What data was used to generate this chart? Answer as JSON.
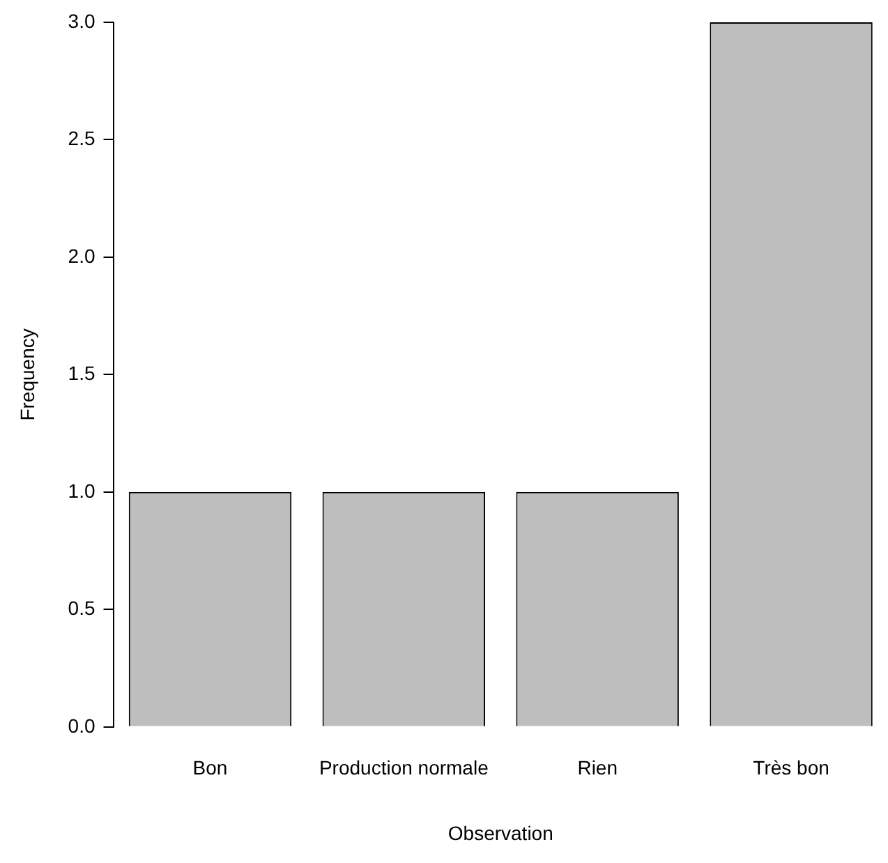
{
  "chart_data": {
    "type": "bar",
    "xlabel": "Observation",
    "ylabel": "Frequency",
    "categories": [
      "Bon",
      "Production normale",
      "Rien",
      "Très bon"
    ],
    "values": [
      1,
      1,
      1,
      3
    ],
    "color": "#bebebe",
    "ylim": [
      0,
      3
    ],
    "yticks": [
      {
        "value": 0,
        "label": "0.0"
      },
      0.5,
      {
        "value": 1,
        "label": "1.0"
      },
      1.5,
      {
        "value": 2,
        "label": "2.0"
      },
      2.5,
      {
        "value": 3,
        "label": "3.0"
      }
    ]
  }
}
